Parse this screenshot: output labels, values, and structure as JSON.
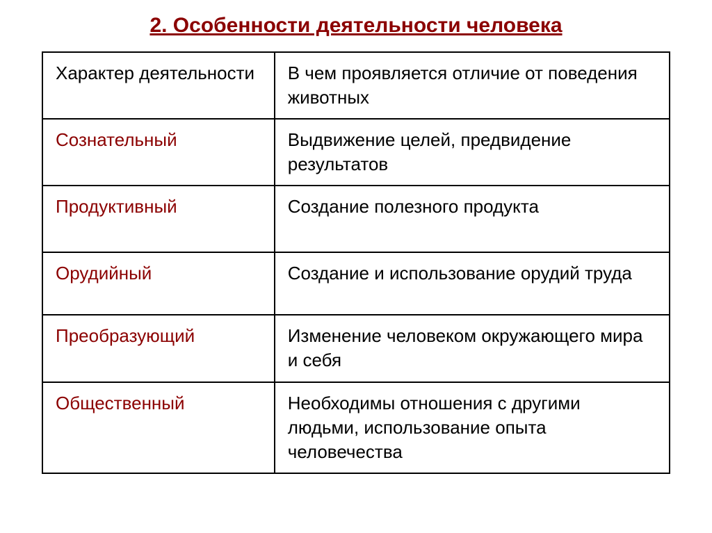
{
  "title": "2. Особенности деятельности человека",
  "table": {
    "header": {
      "left": "Характер деятельности",
      "right": "В чем проявляется отличие от поведения животных"
    },
    "rows": [
      {
        "left": "Сознательный",
        "right": "Выдвижение целей, предвидение результатов"
      },
      {
        "left": "Продуктивный",
        "right": "Создание полезного продукта"
      },
      {
        "left": "Орудийный",
        "right": "Создание и использование орудий труда"
      },
      {
        "left": "Преобразующий",
        "right": "Изменение человеком окружающего мира и себя"
      },
      {
        "left": "Общественный",
        "right": "Необходимы отношения с другими людьми, использование опыта человечества"
      }
    ]
  },
  "colors": {
    "title_color": "#8b0000",
    "category_color": "#8b0000",
    "text_color": "#000000",
    "border_color": "#000000",
    "background": "#ffffff"
  },
  "typography": {
    "title_fontsize": 30,
    "cell_fontsize": 26,
    "font_family": "Arial"
  },
  "layout": {
    "column_widths": [
      "37%",
      "63%"
    ],
    "border_width": 2
  }
}
